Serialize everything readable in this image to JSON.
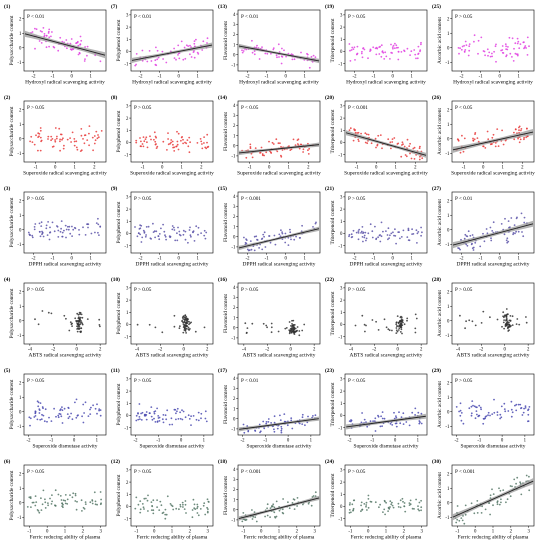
{
  "chart_data": {
    "type": "scatter",
    "rows": [
      {
        "xlabel": "Hydroxyl radical scavenging activity",
        "color": "#e040e0",
        "xticks": [
          -2,
          -1,
          0,
          1
        ],
        "xrange": [
          -2.5,
          1.8
        ]
      },
      {
        "xlabel": "Superoxide radical scavenging activity",
        "color": "#e83a3a",
        "xticks": [
          -1,
          0,
          1,
          2
        ],
        "xrange": [
          -1.6,
          2.6
        ]
      },
      {
        "xlabel": "DPPH radical scavenging activity",
        "color": "#5a52a8",
        "xticks": [
          -2,
          -1,
          0,
          1
        ],
        "xrange": [
          -2.5,
          1.8
        ]
      },
      {
        "xlabel": "ABTS radical scavenging activity",
        "color": "#333333",
        "xticks": [
          -4,
          -2,
          0,
          2
        ],
        "xrange": [
          -4.5,
          2.5
        ]
      },
      {
        "xlabel": "Superoxide dismutase activity",
        "color": "#4a4ab0",
        "xticks": [
          -2,
          -1,
          0,
          1
        ],
        "xrange": [
          -2.2,
          1.4
        ]
      },
      {
        "xlabel": "Ferric reducing ability of plasma",
        "color": "#557766",
        "xticks": [
          -1,
          0,
          1,
          2,
          3
        ],
        "xrange": [
          -1.3,
          3.3
        ]
      }
    ],
    "columns": [
      {
        "ylabel": "Polysaccharide content",
        "yticks": [
          -1,
          0,
          1,
          2
        ],
        "yrange": [
          -1.6,
          2.6
        ]
      },
      {
        "ylabel": "Polyphenol content",
        "yticks": [
          -1,
          0,
          1,
          2,
          3
        ],
        "yrange": [
          -1.6,
          3.4
        ]
      },
      {
        "ylabel": "Flavonoid content",
        "yticks": [
          -1,
          0,
          1,
          2,
          3,
          4
        ],
        "yrange": [
          -1.6,
          4.4
        ]
      },
      {
        "ylabel": "Triterpenoid content",
        "yticks": [
          -1,
          0,
          1,
          2,
          3
        ],
        "yrange": [
          -1.6,
          3.4
        ]
      },
      {
        "ylabel": "Ascorbic acid content",
        "yticks": [
          -1,
          0,
          1,
          2
        ],
        "yrange": [
          -1.6,
          2.6
        ]
      }
    ],
    "panels": [
      {
        "label": "(1)",
        "p": "P < 0.01",
        "fit": [
          -0.35,
          0.1
        ]
      },
      {
        "label": "(7)",
        "p": "P < 0.01",
        "fit": [
          0.3,
          0.0
        ]
      },
      {
        "label": "(13)",
        "p": "P < 0.01",
        "fit": [
          -0.35,
          0.0
        ]
      },
      {
        "label": "(19)",
        "p": "P > 0.05",
        "fit": null
      },
      {
        "label": "(25)",
        "p": "P > 0.05",
        "fit": null
      },
      {
        "label": "(2)",
        "p": "P > 0.05",
        "fit": null
      },
      {
        "label": "(8)",
        "p": "P > 0.05",
        "fit": null
      },
      {
        "label": "(14)",
        "p": "P < 0.05",
        "fit": [
          0.2,
          -0.4
        ]
      },
      {
        "label": "(20)",
        "p": "P < 0.001",
        "fit": [
          -0.45,
          0.1
        ]
      },
      {
        "label": "(26)",
        "p": "P < 0.05",
        "fit": [
          0.3,
          -0.3
        ]
      },
      {
        "label": "(3)",
        "p": "P > 0.05",
        "fit": null
      },
      {
        "label": "(9)",
        "p": "P > 0.05",
        "fit": null
      },
      {
        "label": "(15)",
        "p": "P < 0.001",
        "fit": [
          0.45,
          0.0
        ]
      },
      {
        "label": "(21)",
        "p": "P > 0.05",
        "fit": null
      },
      {
        "label": "(27)",
        "p": "P < 0.01",
        "fit": [
          0.35,
          -0.2
        ]
      },
      {
        "label": "(4)",
        "p": "P > 0.05",
        "fit": null
      },
      {
        "label": "(10)",
        "p": "P > 0.05",
        "fit": null
      },
      {
        "label": "(16)",
        "p": "P > 0.05",
        "fit": null
      },
      {
        "label": "(22)",
        "p": "P > 0.05",
        "fit": null
      },
      {
        "label": "(28)",
        "p": "P > 0.05",
        "fit": null
      },
      {
        "label": "(5)",
        "p": "P > 0.05",
        "fit": null
      },
      {
        "label": "(11)",
        "p": "P > 0.05",
        "fit": null
      },
      {
        "label": "(17)",
        "p": "P < 0.01",
        "fit": [
          0.3,
          -0.4
        ]
      },
      {
        "label": "(23)",
        "p": "P < 0.05",
        "fit": [
          0.25,
          -0.4
        ]
      },
      {
        "label": "(29)",
        "p": "P > 0.05",
        "fit": null
      },
      {
        "label": "(6)",
        "p": "P > 0.05",
        "fit": null
      },
      {
        "label": "(12)",
        "p": "P > 0.05",
        "fit": null
      },
      {
        "label": "(18)",
        "p": "P < 0.001",
        "fit": [
          0.45,
          -0.3
        ]
      },
      {
        "label": "(24)",
        "p": "P > 0.05",
        "fit": null
      },
      {
        "label": "(30)",
        "p": "P < 0.001",
        "fit": [
          0.55,
          -0.3
        ]
      }
    ]
  }
}
